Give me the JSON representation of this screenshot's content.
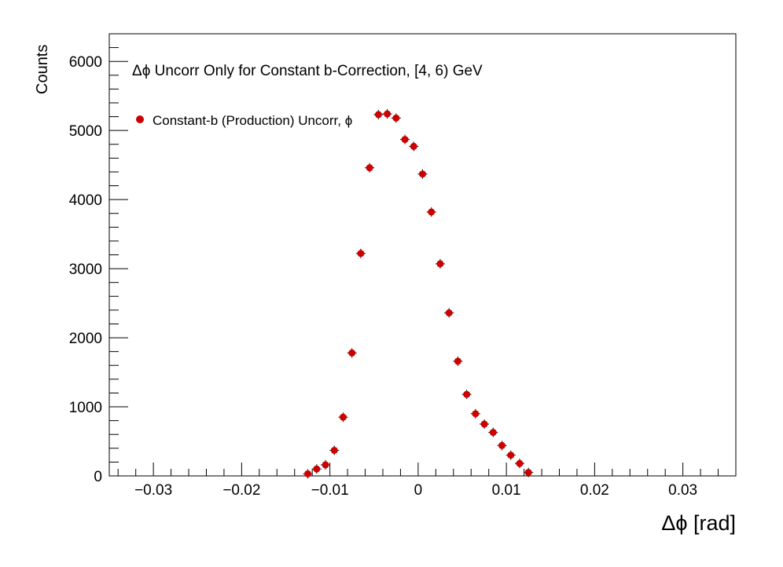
{
  "chart_data": {
    "type": "scatter",
    "title": "Δϕ Uncorr Only for Constant b-Correction, [4, 6) GeV",
    "xlabel": "Δϕ  [rad]",
    "ylabel": "Counts",
    "xlim": [
      -0.035,
      0.036
    ],
    "ylim": [
      0,
      6400
    ],
    "x_ticks": [
      -0.03,
      -0.02,
      -0.01,
      0,
      0.01,
      0.02,
      0.03
    ],
    "x_tick_labels": [
      "−0.03",
      "−0.02",
      "−0.01",
      "0",
      "0.01",
      "0.02",
      "0.03"
    ],
    "y_ticks": [
      0,
      1000,
      2000,
      3000,
      4000,
      5000,
      6000
    ],
    "y_tick_labels": [
      "0",
      "1000",
      "2000",
      "3000",
      "4000",
      "5000",
      "6000"
    ],
    "grid": false,
    "legend": {
      "position": "top-left",
      "entries": [
        "Constant-b (Production) Uncorr, ϕ"
      ]
    },
    "series": [
      {
        "name": "Constant-b (Production) Uncorr, ϕ",
        "color": "#cc0000",
        "x": [
          -0.0125,
          -0.0115,
          -0.0105,
          -0.0095,
          -0.0085,
          -0.0075,
          -0.0065,
          -0.0055,
          -0.0045,
          -0.0035,
          -0.0025,
          -0.0015,
          -0.0005,
          0.0005,
          0.0015,
          0.0025,
          0.0035,
          0.0045,
          0.0055,
          0.0065,
          0.0075,
          0.0085,
          0.0095,
          0.0105,
          0.0115,
          0.0125
        ],
        "y": [
          30,
          100,
          160,
          370,
          850,
          1780,
          3220,
          4460,
          5230,
          5240,
          5180,
          4870,
          4770,
          4370,
          3820,
          3070,
          2360,
          1660,
          1180,
          900,
          750,
          630,
          440,
          300,
          180,
          50
        ]
      }
    ]
  }
}
